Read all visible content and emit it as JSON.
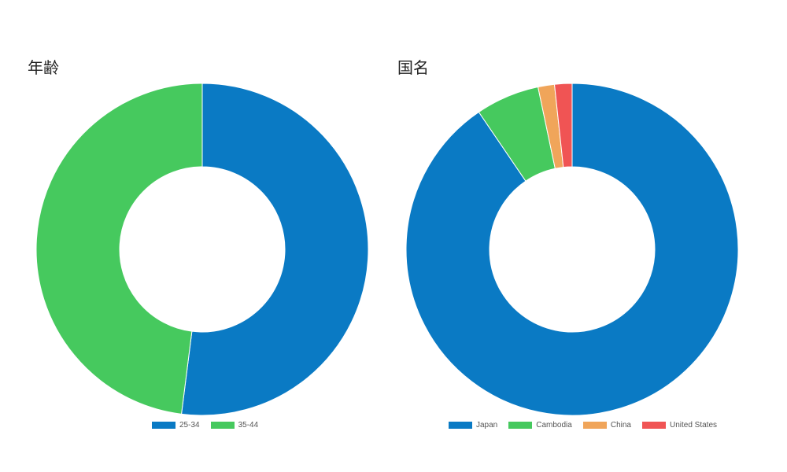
{
  "chart_data": [
    {
      "type": "donut",
      "title": "年齢",
      "categories": [
        "25-34",
        "35-44"
      ],
      "values": [
        52,
        48
      ],
      "colors": [
        "#0a7ac4",
        "#46c95e"
      ],
      "legend_position": "bottom"
    },
    {
      "type": "donut",
      "title": "国名",
      "categories": [
        "Japan",
        "Cambodia",
        "China",
        "United States"
      ],
      "values": [
        90.5,
        6.2,
        1.6,
        1.7
      ],
      "colors": [
        "#0a7ac4",
        "#46c95e",
        "#f0a55a",
        "#f05454"
      ],
      "legend_position": "bottom"
    }
  ]
}
